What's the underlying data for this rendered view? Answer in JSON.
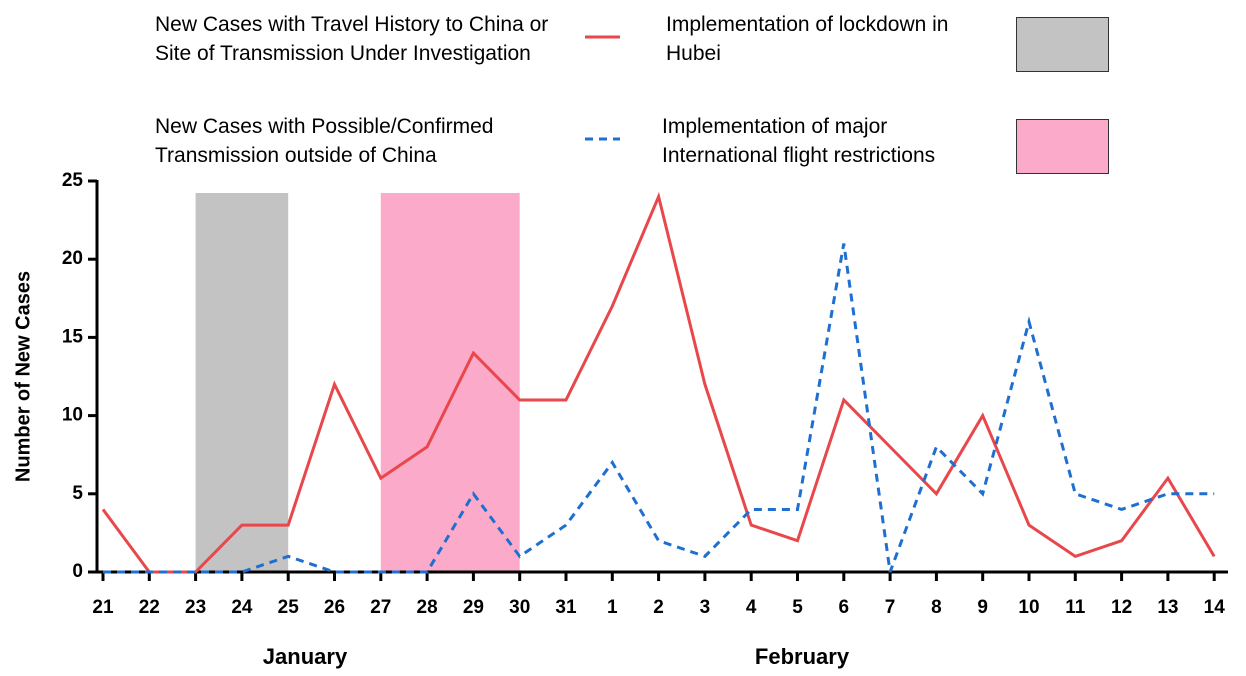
{
  "chart_data": {
    "type": "line",
    "categories": [
      "21",
      "22",
      "23",
      "24",
      "25",
      "26",
      "27",
      "28",
      "29",
      "30",
      "31",
      "1",
      "2",
      "3",
      "4",
      "5",
      "6",
      "7",
      "8",
      "9",
      "10",
      "11",
      "12",
      "13",
      "14"
    ],
    "series": [
      {
        "name": "New Cases with Travel History to China or Site of Transmission Under Investigation",
        "color": "#e8474b",
        "dashed": false,
        "values": [
          4,
          0,
          0,
          3,
          3,
          12,
          6,
          8,
          14,
          11,
          11,
          17,
          24,
          12,
          3,
          2,
          11,
          8,
          5,
          10,
          3,
          1,
          2,
          6,
          1
        ]
      },
      {
        "name": "New Cases with Possible/Confirmed Transmission outside of China",
        "color": "#1f6fd1",
        "dashed": true,
        "values": [
          0,
          0,
          0,
          0,
          1,
          0,
          0,
          0,
          5,
          1,
          3,
          7,
          2,
          1,
          4,
          4,
          21,
          0,
          8,
          5,
          16,
          5,
          4,
          5,
          5
        ]
      }
    ],
    "shaded_regions": [
      {
        "name": "Implementation of lockdown  in Hubei",
        "color": "#c3c3c3",
        "from": "23",
        "to": "25"
      },
      {
        "name": "Implementation of major International flight restrictions",
        "color": "#fbaac9",
        "from": "27",
        "to": "30"
      }
    ],
    "ylabel": "Number of New Cases",
    "x_group_labels": [
      "January",
      "February"
    ],
    "ylim": [
      0,
      25
    ],
    "yticks": [
      0,
      5,
      10,
      15,
      20,
      25
    ]
  }
}
